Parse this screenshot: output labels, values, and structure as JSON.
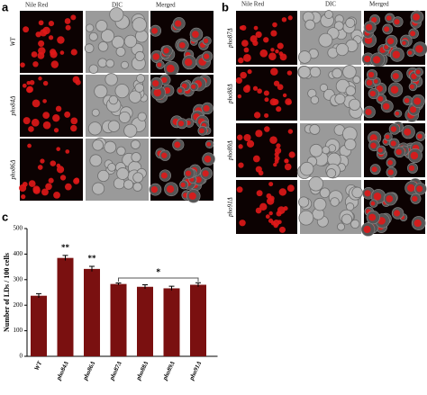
{
  "panel_a": {
    "label": "a",
    "columns": [
      "Nile Red",
      "DIC",
      "Merged"
    ],
    "rows": [
      "WT",
      "pho84Δ",
      "pho86Δ"
    ]
  },
  "panel_b": {
    "label": "b",
    "columns": [
      "Nile Red",
      "DIC",
      "Merged"
    ],
    "rows": [
      "pho87Δ",
      "pho88Δ",
      "pho89Δ",
      "pho91Δ"
    ]
  },
  "panel_c": {
    "label": "c"
  },
  "chart_data": {
    "type": "bar",
    "y_label": "Number of LDs / 100 cells",
    "categories": [
      "WT",
      "pho84Δ",
      "pho86Δ",
      "pho87Δ",
      "pho88Δ",
      "pho89Δ",
      "pho91Δ"
    ],
    "values": [
      237,
      385,
      342,
      283,
      272,
      266,
      280
    ],
    "errors": [
      8,
      10,
      10,
      4,
      8,
      8,
      8
    ],
    "color": "#7a1010",
    "ylim": [
      0,
      500
    ],
    "yticks": [
      0,
      100,
      200,
      300,
      400,
      500
    ],
    "annotations": [
      "**",
      "**",
      "*"
    ]
  }
}
